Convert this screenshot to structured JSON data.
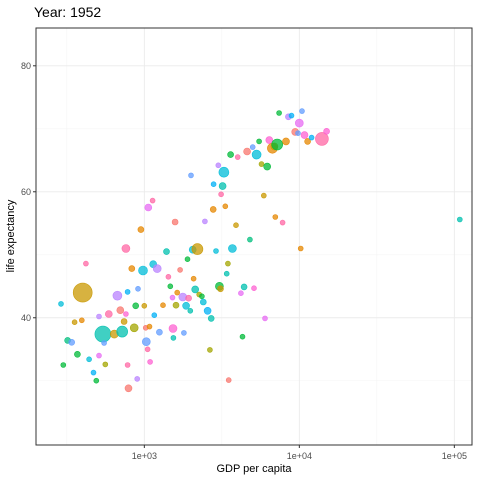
{
  "chart_data": {
    "type": "scatter",
    "title": "Year: 1952",
    "xlabel": "GDP per capita",
    "ylabel": "life expectancy",
    "x_scale": "log10",
    "xlim": [
      200,
      130000
    ],
    "ylim": [
      19.8,
      86
    ],
    "x_ticks": [
      {
        "value": 1000,
        "label": "1e+03"
      },
      {
        "value": 10000,
        "label": "1e+04"
      },
      {
        "value": 100000,
        "label": "1e+05"
      }
    ],
    "y_ticks": [
      {
        "value": 40,
        "label": "40"
      },
      {
        "value": 60,
        "label": "60"
      },
      {
        "value": 80,
        "label": "80"
      }
    ],
    "grid": true,
    "legend": "none",
    "palette": [
      "#F8766D",
      "#E58700",
      "#C99800",
      "#A3A500",
      "#6BB100",
      "#00BA38",
      "#00BF7D",
      "#00C0AF",
      "#00BCD8",
      "#00B0F6",
      "#619CFF",
      "#B983FF",
      "#E76BF3",
      "#FD61D1",
      "#FF67A4"
    ],
    "points": [
      {
        "x": 290,
        "y": 42.2,
        "size": 2.5,
        "color": "#00BCD8"
      },
      {
        "x": 320,
        "y": 36.4,
        "size": 3,
        "color": "#00BF7D"
      },
      {
        "x": 340,
        "y": 36.1,
        "size": 3,
        "color": "#619CFF"
      },
      {
        "x": 355,
        "y": 39.3,
        "size": 2.5,
        "color": "#C99800"
      },
      {
        "x": 370,
        "y": 34.2,
        "size": 3,
        "color": "#00BA38"
      },
      {
        "x": 395,
        "y": 39.6,
        "size": 2.5,
        "color": "#E58700"
      },
      {
        "x": 400,
        "y": 44.0,
        "size": 9.5,
        "color": "#C99800"
      },
      {
        "x": 420,
        "y": 48.6,
        "size": 2.5,
        "color": "#FF67A4"
      },
      {
        "x": 300,
        "y": 32.5,
        "size": 2.5,
        "color": "#00BA38"
      },
      {
        "x": 440,
        "y": 33.4,
        "size": 2.5,
        "color": "#00BCD8"
      },
      {
        "x": 470,
        "y": 31.3,
        "size": 2.5,
        "color": "#00B0F6"
      },
      {
        "x": 490,
        "y": 30.0,
        "size": 2.5,
        "color": "#00BA38"
      },
      {
        "x": 510,
        "y": 40.2,
        "size": 2.5,
        "color": "#B983FF"
      },
      {
        "x": 510,
        "y": 34.0,
        "size": 2.5,
        "color": "#E76BF3"
      },
      {
        "x": 540,
        "y": 37.4,
        "size": 8,
        "color": "#00C0AF"
      },
      {
        "x": 550,
        "y": 36.0,
        "size": 2.5,
        "color": "#619CFF"
      },
      {
        "x": 560,
        "y": 32.6,
        "size": 2.5,
        "color": "#A3A500"
      },
      {
        "x": 590,
        "y": 40.6,
        "size": 3.5,
        "color": "#FF67A4"
      },
      {
        "x": 640,
        "y": 37.4,
        "size": 4,
        "color": "#C99800"
      },
      {
        "x": 670,
        "y": 43.5,
        "size": 4.5,
        "color": "#B983FF"
      },
      {
        "x": 700,
        "y": 41.2,
        "size": 3.5,
        "color": "#F8766D"
      },
      {
        "x": 720,
        "y": 37.8,
        "size": 5.5,
        "color": "#00C0AF"
      },
      {
        "x": 740,
        "y": 39.4,
        "size": 3,
        "color": "#C99800"
      },
      {
        "x": 760,
        "y": 40.6,
        "size": 2.5,
        "color": "#FD61D1"
      },
      {
        "x": 780,
        "y": 32.5,
        "size": 2.5,
        "color": "#FF67A4"
      },
      {
        "x": 790,
        "y": 28.8,
        "size": 3.5,
        "color": "#F8766D"
      },
      {
        "x": 760,
        "y": 51.0,
        "size": 4,
        "color": "#FF67A4"
      },
      {
        "x": 780,
        "y": 44.1,
        "size": 2.5,
        "color": "#00B0F6"
      },
      {
        "x": 830,
        "y": 47.8,
        "size": 3,
        "color": "#E58700"
      },
      {
        "x": 860,
        "y": 38.4,
        "size": 4,
        "color": "#A3A500"
      },
      {
        "x": 880,
        "y": 41.9,
        "size": 3,
        "color": "#00BA38"
      },
      {
        "x": 900,
        "y": 30.3,
        "size": 2.5,
        "color": "#B983FF"
      },
      {
        "x": 910,
        "y": 44.6,
        "size": 2.5,
        "color": "#619CFF"
      },
      {
        "x": 950,
        "y": 54.0,
        "size": 3,
        "color": "#E58700"
      },
      {
        "x": 980,
        "y": 47.5,
        "size": 4.5,
        "color": "#00BCD8"
      },
      {
        "x": 1000,
        "y": 41.9,
        "size": 2.5,
        "color": "#C99800"
      },
      {
        "x": 1020,
        "y": 38.4,
        "size": 2.5,
        "color": "#F8766D"
      },
      {
        "x": 1030,
        "y": 36.2,
        "size": 4,
        "color": "#619CFF"
      },
      {
        "x": 1050,
        "y": 35.0,
        "size": 2.5,
        "color": "#FF67A4"
      },
      {
        "x": 1060,
        "y": 57.5,
        "size": 3.5,
        "color": "#E76BF3"
      },
      {
        "x": 1080,
        "y": 38.6,
        "size": 2.5,
        "color": "#E58700"
      },
      {
        "x": 1090,
        "y": 33.0,
        "size": 2.5,
        "color": "#FD61D1"
      },
      {
        "x": 1130,
        "y": 58.6,
        "size": 2.5,
        "color": "#FF67A4"
      },
      {
        "x": 1140,
        "y": 48.5,
        "size": 3.5,
        "color": "#00BCD8"
      },
      {
        "x": 1160,
        "y": 40.4,
        "size": 2.5,
        "color": "#00B0F6"
      },
      {
        "x": 1210,
        "y": 47.8,
        "size": 4,
        "color": "#B983FF"
      },
      {
        "x": 1250,
        "y": 37.7,
        "size": 3,
        "color": "#619CFF"
      },
      {
        "x": 1320,
        "y": 42.0,
        "size": 2.5,
        "color": "#E58700"
      },
      {
        "x": 1390,
        "y": 50.5,
        "size": 3,
        "color": "#00C0AF"
      },
      {
        "x": 1430,
        "y": 46.5,
        "size": 2.5,
        "color": "#FF67A4"
      },
      {
        "x": 1470,
        "y": 45.0,
        "size": 2.5,
        "color": "#00BA38"
      },
      {
        "x": 1520,
        "y": 43.2,
        "size": 2.5,
        "color": "#E76BF3"
      },
      {
        "x": 1530,
        "y": 38.3,
        "size": 4,
        "color": "#FD61D1"
      },
      {
        "x": 1540,
        "y": 36.8,
        "size": 2.5,
        "color": "#00C0AF"
      },
      {
        "x": 1580,
        "y": 55.2,
        "size": 3,
        "color": "#F8766D"
      },
      {
        "x": 1600,
        "y": 42.0,
        "size": 3,
        "color": "#A3A500"
      },
      {
        "x": 1630,
        "y": 44.0,
        "size": 2.5,
        "color": "#E58700"
      },
      {
        "x": 1700,
        "y": 47.6,
        "size": 2.5,
        "color": "#F8766D"
      },
      {
        "x": 1770,
        "y": 43.3,
        "size": 4,
        "color": "#B983FF"
      },
      {
        "x": 1800,
        "y": 37.6,
        "size": 2.5,
        "color": "#619CFF"
      },
      {
        "x": 1860,
        "y": 41.9,
        "size": 3.5,
        "color": "#00BCD8"
      },
      {
        "x": 1900,
        "y": 49.3,
        "size": 2.5,
        "color": "#00BA38"
      },
      {
        "x": 1930,
        "y": 43.1,
        "size": 3,
        "color": "#FF67A4"
      },
      {
        "x": 1980,
        "y": 41.1,
        "size": 2.5,
        "color": "#00C0AF"
      },
      {
        "x": 2000,
        "y": 62.6,
        "size": 2.5,
        "color": "#619CFF"
      },
      {
        "x": 2050,
        "y": 50.8,
        "size": 3.5,
        "color": "#00BCD8"
      },
      {
        "x": 2080,
        "y": 46.2,
        "size": 2.5,
        "color": "#E58700"
      },
      {
        "x": 2130,
        "y": 44.5,
        "size": 3.5,
        "color": "#00C0AF"
      },
      {
        "x": 2200,
        "y": 50.9,
        "size": 5.5,
        "color": "#C99800"
      },
      {
        "x": 2260,
        "y": 43.7,
        "size": 2.5,
        "color": "#A3A500"
      },
      {
        "x": 2350,
        "y": 43.4,
        "size": 2.5,
        "color": "#00BA38"
      },
      {
        "x": 2400,
        "y": 42.5,
        "size": 3,
        "color": "#00BCD8"
      },
      {
        "x": 2460,
        "y": 55.3,
        "size": 2.5,
        "color": "#B983FF"
      },
      {
        "x": 2560,
        "y": 41.1,
        "size": 3.5,
        "color": "#00B0F6"
      },
      {
        "x": 2650,
        "y": 34.9,
        "size": 2.5,
        "color": "#A3A500"
      },
      {
        "x": 2700,
        "y": 39.9,
        "size": 3,
        "color": "#00C0AF"
      },
      {
        "x": 2780,
        "y": 57.2,
        "size": 3,
        "color": "#E58700"
      },
      {
        "x": 2800,
        "y": 61.2,
        "size": 2.5,
        "color": "#00B0F6"
      },
      {
        "x": 2900,
        "y": 50.6,
        "size": 2.5,
        "color": "#00BCD8"
      },
      {
        "x": 3000,
        "y": 64.2,
        "size": 2.5,
        "color": "#B983FF"
      },
      {
        "x": 3050,
        "y": 45.0,
        "size": 4,
        "color": "#00BA38"
      },
      {
        "x": 3100,
        "y": 44.6,
        "size": 3,
        "color": "#C99800"
      },
      {
        "x": 3130,
        "y": 59.6,
        "size": 2.5,
        "color": "#FF67A4"
      },
      {
        "x": 3200,
        "y": 60.9,
        "size": 3.5,
        "color": "#00C0AF"
      },
      {
        "x": 3260,
        "y": 63.1,
        "size": 5,
        "color": "#00BCD8"
      },
      {
        "x": 3330,
        "y": 57.7,
        "size": 2.5,
        "color": "#E58700"
      },
      {
        "x": 3400,
        "y": 47.0,
        "size": 2.5,
        "color": "#00C0AF"
      },
      {
        "x": 3460,
        "y": 48.6,
        "size": 2.5,
        "color": "#A3A500"
      },
      {
        "x": 3500,
        "y": 30.1,
        "size": 2.5,
        "color": "#F8766D"
      },
      {
        "x": 3600,
        "y": 65.9,
        "size": 3,
        "color": "#00BA38"
      },
      {
        "x": 3700,
        "y": 51.0,
        "size": 4,
        "color": "#00BCD8"
      },
      {
        "x": 3900,
        "y": 54.7,
        "size": 2.5,
        "color": "#C99800"
      },
      {
        "x": 4000,
        "y": 65.5,
        "size": 2.5,
        "color": "#FF67A4"
      },
      {
        "x": 4200,
        "y": 43.9,
        "size": 2.5,
        "color": "#E76BF3"
      },
      {
        "x": 4300,
        "y": 37.0,
        "size": 2.5,
        "color": "#00BA38"
      },
      {
        "x": 4400,
        "y": 44.9,
        "size": 3,
        "color": "#00C0AF"
      },
      {
        "x": 4600,
        "y": 66.4,
        "size": 3.5,
        "color": "#F8766D"
      },
      {
        "x": 4800,
        "y": 52.4,
        "size": 2.5,
        "color": "#00BF7D"
      },
      {
        "x": 5000,
        "y": 67.1,
        "size": 2.5,
        "color": "#619CFF"
      },
      {
        "x": 5100,
        "y": 44.7,
        "size": 2.5,
        "color": "#FD61D1"
      },
      {
        "x": 5300,
        "y": 65.9,
        "size": 4.5,
        "color": "#00BCD8"
      },
      {
        "x": 5500,
        "y": 68.0,
        "size": 2.5,
        "color": "#00BA38"
      },
      {
        "x": 5700,
        "y": 64.4,
        "size": 2.5,
        "color": "#A3A500"
      },
      {
        "x": 5900,
        "y": 59.4,
        "size": 2.5,
        "color": "#C99800"
      },
      {
        "x": 6000,
        "y": 39.9,
        "size": 2.5,
        "color": "#E76BF3"
      },
      {
        "x": 6200,
        "y": 64.0,
        "size": 3.5,
        "color": "#00BA38"
      },
      {
        "x": 6400,
        "y": 68.2,
        "size": 3.5,
        "color": "#FD61D1"
      },
      {
        "x": 6700,
        "y": 66.9,
        "size": 5,
        "color": "#E58700"
      },
      {
        "x": 6900,
        "y": 67.2,
        "size": 3.5,
        "color": "#C99800"
      },
      {
        "x": 7000,
        "y": 56.0,
        "size": 2.5,
        "color": "#E58700"
      },
      {
        "x": 7200,
        "y": 67.5,
        "size": 5.5,
        "color": "#00BA38"
      },
      {
        "x": 7400,
        "y": 72.5,
        "size": 2.5,
        "color": "#00BA38"
      },
      {
        "x": 7800,
        "y": 55.1,
        "size": 2.5,
        "color": "#FF67A4"
      },
      {
        "x": 8200,
        "y": 68.0,
        "size": 3.5,
        "color": "#E58700"
      },
      {
        "x": 8500,
        "y": 71.9,
        "size": 3,
        "color": "#B983FF"
      },
      {
        "x": 8900,
        "y": 72.1,
        "size": 2.5,
        "color": "#00B0F6"
      },
      {
        "x": 9400,
        "y": 69.5,
        "size": 3.5,
        "color": "#F8766D"
      },
      {
        "x": 9800,
        "y": 69.3,
        "size": 2.5,
        "color": "#619CFF"
      },
      {
        "x": 10000,
        "y": 70.9,
        "size": 4,
        "color": "#E76BF3"
      },
      {
        "x": 10200,
        "y": 51.0,
        "size": 2.5,
        "color": "#E58700"
      },
      {
        "x": 10400,
        "y": 72.8,
        "size": 2.5,
        "color": "#619CFF"
      },
      {
        "x": 10800,
        "y": 69.0,
        "size": 3.5,
        "color": "#FD61D1"
      },
      {
        "x": 11300,
        "y": 68.0,
        "size": 3,
        "color": "#E58700"
      },
      {
        "x": 12000,
        "y": 68.6,
        "size": 2.5,
        "color": "#00B0F6"
      },
      {
        "x": 13990,
        "y": 68.4,
        "size": 6.5,
        "color": "#FF67A4"
      },
      {
        "x": 15000,
        "y": 69.6,
        "size": 3,
        "color": "#FD61D1"
      },
      {
        "x": 108382,
        "y": 55.6,
        "size": 2.5,
        "color": "#00C0AF"
      }
    ]
  }
}
